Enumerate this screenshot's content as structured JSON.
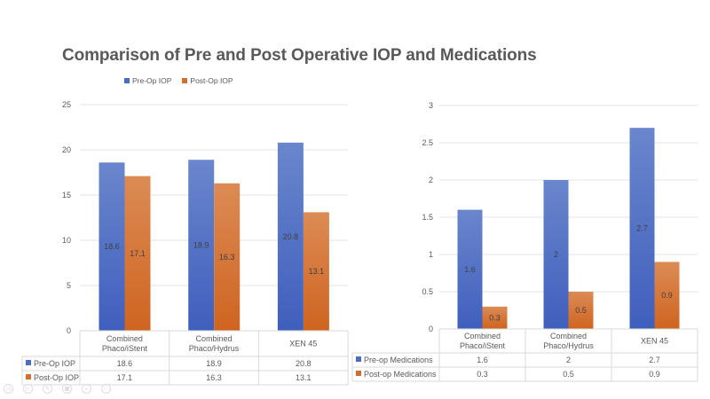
{
  "title": "Comparison of Pre and Post Operative IOP and Medications",
  "colors": {
    "pre": "#4A6BC4",
    "pre_top": "#6a86cc",
    "post": "#D46E2E",
    "post_top": "#dc8b55",
    "grid": "#e3e3e3",
    "table_border": "#d9d9d9"
  },
  "chart_data": [
    {
      "type": "bar",
      "title": "Comparison of Pre and Post Operative IOP and Medications",
      "categories": [
        "Combined Phaco/iStent",
        "Combined Phaco/Hydrus",
        "XEN 45"
      ],
      "category_lines": [
        [
          "Combined",
          "Phaco/iStent"
        ],
        [
          "Combined",
          "Phaco/Hydrus"
        ],
        [
          "XEN 45"
        ]
      ],
      "series": [
        {
          "name": "Pre-Op IOP",
          "values": [
            18.6,
            18.9,
            20.8
          ]
        },
        {
          "name": "Post-Op IOP",
          "values": [
            17.1,
            16.3,
            13.1
          ]
        }
      ],
      "ylim": [
        0,
        25
      ],
      "yticks": [
        0,
        5,
        10,
        15,
        20,
        25
      ],
      "xlabel": "",
      "ylabel": "",
      "grid": true,
      "legend": "top",
      "data_table": true
    },
    {
      "type": "bar",
      "title": "",
      "categories": [
        "Combined Phaco/iStent",
        "Combined Phaco/Hydrus",
        "XEN 45"
      ],
      "category_lines": [
        [
          "Combined",
          "Phaco/iStent"
        ],
        [
          "Combined",
          "Phaco/Hydrus"
        ],
        [
          "XEN 45"
        ]
      ],
      "series": [
        {
          "name": "Pre-op Medications",
          "values": [
            1.6,
            2,
            2.7
          ]
        },
        {
          "name": "Post-op Medications",
          "values": [
            0.3,
            0.5,
            0.9
          ]
        }
      ],
      "ylim": [
        0,
        3
      ],
      "yticks": [
        0,
        0.5,
        1,
        1.5,
        2,
        2.5,
        3
      ],
      "xlabel": "",
      "ylabel": "",
      "grid": true,
      "legend": "data-table",
      "data_table": true
    }
  ],
  "legend": [
    {
      "label": "Pre-Op IOP",
      "color": "#4A6BC4"
    },
    {
      "label": "Post-Op IOP",
      "color": "#D46E2E"
    }
  ],
  "toolbar": [
    {
      "icon": "previous-icon",
      "glyph": "◁"
    },
    {
      "icon": "next-icon",
      "glyph": "▷"
    },
    {
      "icon": "pen-icon",
      "glyph": "✎"
    },
    {
      "icon": "slides-icon",
      "glyph": "▦"
    },
    {
      "icon": "zoom-icon",
      "glyph": "⌕"
    },
    {
      "icon": "more-icon",
      "glyph": "⋯"
    }
  ]
}
